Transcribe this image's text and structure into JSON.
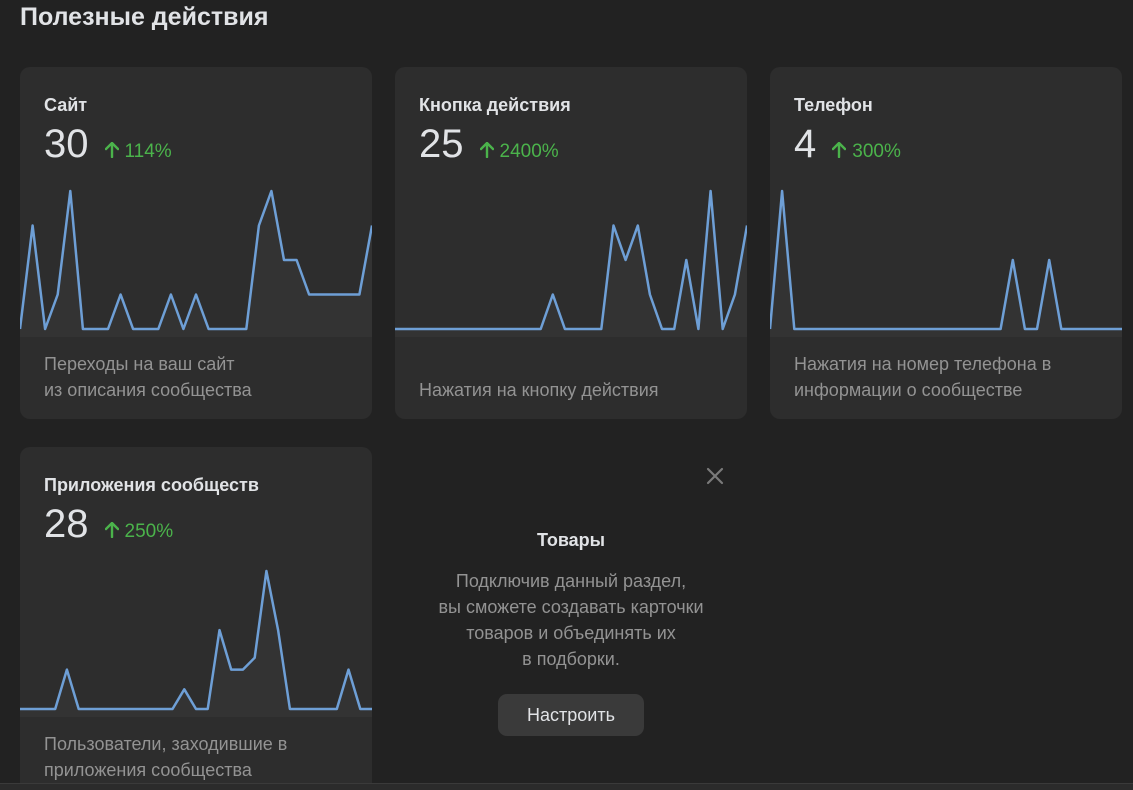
{
  "heading": "Полезные действия",
  "accent_color": "#4bb34b",
  "line_color": "#6e9fd6",
  "cards": [
    {
      "title": "Сайт",
      "value": "30",
      "change": "114%",
      "change_icon": "arrow-up-icon",
      "desc_lines": [
        "Переходы на ваш сайт",
        "из описания сообщества"
      ]
    },
    {
      "title": "Кнопка действия",
      "value": "25",
      "change": "2400%",
      "change_icon": "arrow-up-icon",
      "desc_lines": [
        "",
        "Нажатия на кнопку действия"
      ]
    },
    {
      "title": "Телефон",
      "value": "4",
      "change": "300%",
      "change_icon": "arrow-up-icon",
      "desc_lines": [
        "Нажатия на номер телефона в",
        "информации о сообществе"
      ]
    },
    {
      "title": "Приложения сообществ",
      "value": "28",
      "change": "250%",
      "change_icon": "arrow-up-icon",
      "desc_lines": [
        "Пользователи, заходившие в",
        "приложения сообщества"
      ]
    }
  ],
  "promo": {
    "title": "Товары",
    "text_lines": [
      "Подключив данный раздел,",
      "вы сможете создавать карточки",
      "товаров и объединять их",
      "в подборки."
    ],
    "button_label": "Настроить",
    "close_icon": "close-icon"
  },
  "chart_data": [
    {
      "type": "area",
      "values": [
        0,
        3,
        0,
        1,
        4,
        0,
        0,
        0,
        1,
        0,
        0,
        0,
        1,
        0,
        1,
        0,
        0,
        0,
        0,
        3,
        4,
        2,
        2,
        1,
        1,
        1,
        1,
        1,
        3
      ],
      "ylim": [
        0,
        4
      ]
    },
    {
      "type": "area",
      "values": [
        0,
        0,
        0,
        0,
        0,
        0,
        0,
        0,
        0,
        0,
        0,
        0,
        0,
        1,
        0,
        0,
        0,
        0,
        3,
        2,
        3,
        1,
        0,
        0,
        2,
        0,
        4,
        0,
        1,
        3
      ],
      "ylim": [
        0,
        4
      ]
    },
    {
      "type": "area",
      "values": [
        0,
        1,
        0,
        0,
        0,
        0,
        0,
        0,
        0,
        0,
        0,
        0,
        0,
        0,
        0,
        0,
        0,
        0,
        0,
        0,
        0.5,
        0,
        0,
        0.5,
        0,
        0,
        0,
        0,
        0,
        0
      ],
      "ylim": [
        0,
        1
      ]
    },
    {
      "type": "area",
      "values": [
        0,
        0,
        0,
        0,
        1,
        0,
        0,
        0,
        0,
        0,
        0,
        0,
        0,
        0,
        0.5,
        0,
        0,
        2,
        1,
        1,
        1.3,
        3.5,
        2,
        0,
        0,
        0,
        0,
        0,
        1,
        0,
        0
      ],
      "ylim": [
        0,
        3.5
      ]
    }
  ]
}
